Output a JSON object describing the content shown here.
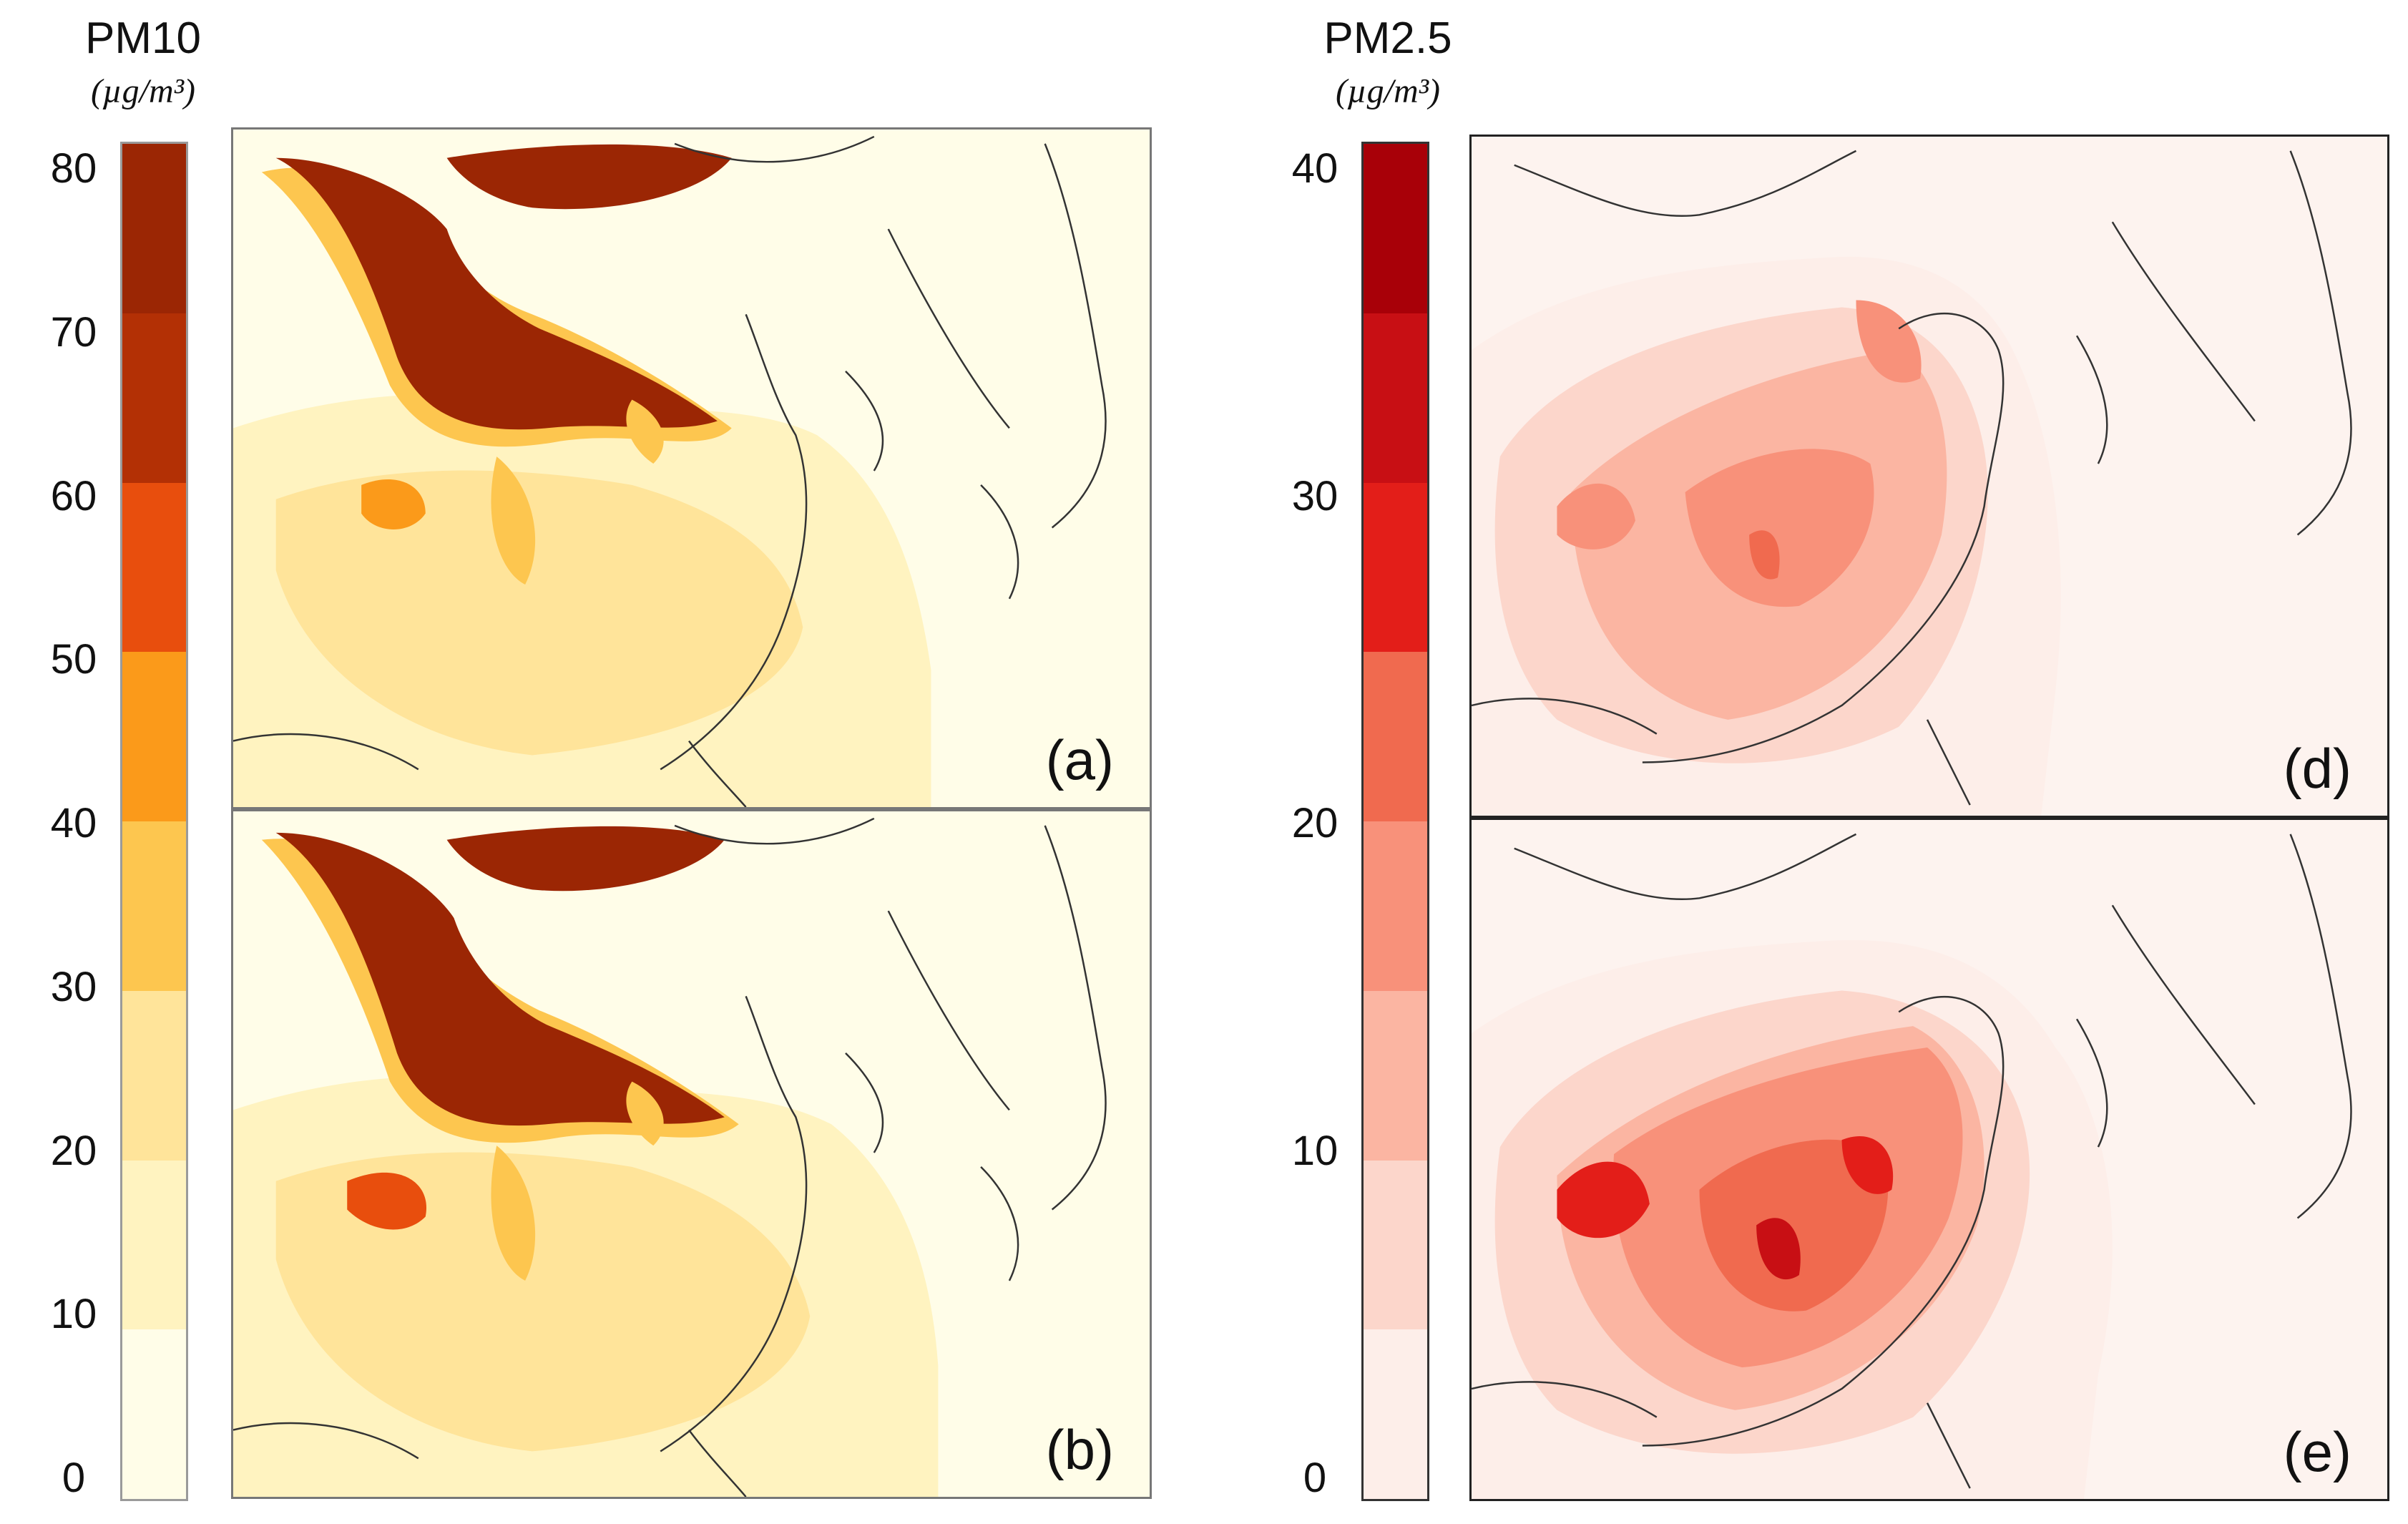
{
  "pm10": {
    "title": "PM10",
    "unit": "(µg/m³)",
    "ticks": [
      "80",
      "70",
      "60",
      "50",
      "40",
      "30",
      "20",
      "10",
      "0"
    ],
    "colors": [
      "#fffde8",
      "#fff3c0",
      "#ffe49a",
      "#fdc64f",
      "#fb9a1a",
      "#e84e0d",
      "#b33005",
      "#9b2604"
    ],
    "panels": [
      {
        "label": "(a)"
      },
      {
        "label": "(b)"
      }
    ]
  },
  "pm25": {
    "title": "PM2.5",
    "unit": "(µg/m³)",
    "ticks": [
      "40",
      "30",
      "20",
      "10",
      "0"
    ],
    "colors": [
      "#fdeee9",
      "#fcd6cb",
      "#fbb5a2",
      "#f8917a",
      "#f06a4f",
      "#e31e19",
      "#c80f14",
      "#a80008"
    ],
    "panels": [
      {
        "label": "(d)"
      },
      {
        "label": "(e)"
      }
    ]
  }
}
